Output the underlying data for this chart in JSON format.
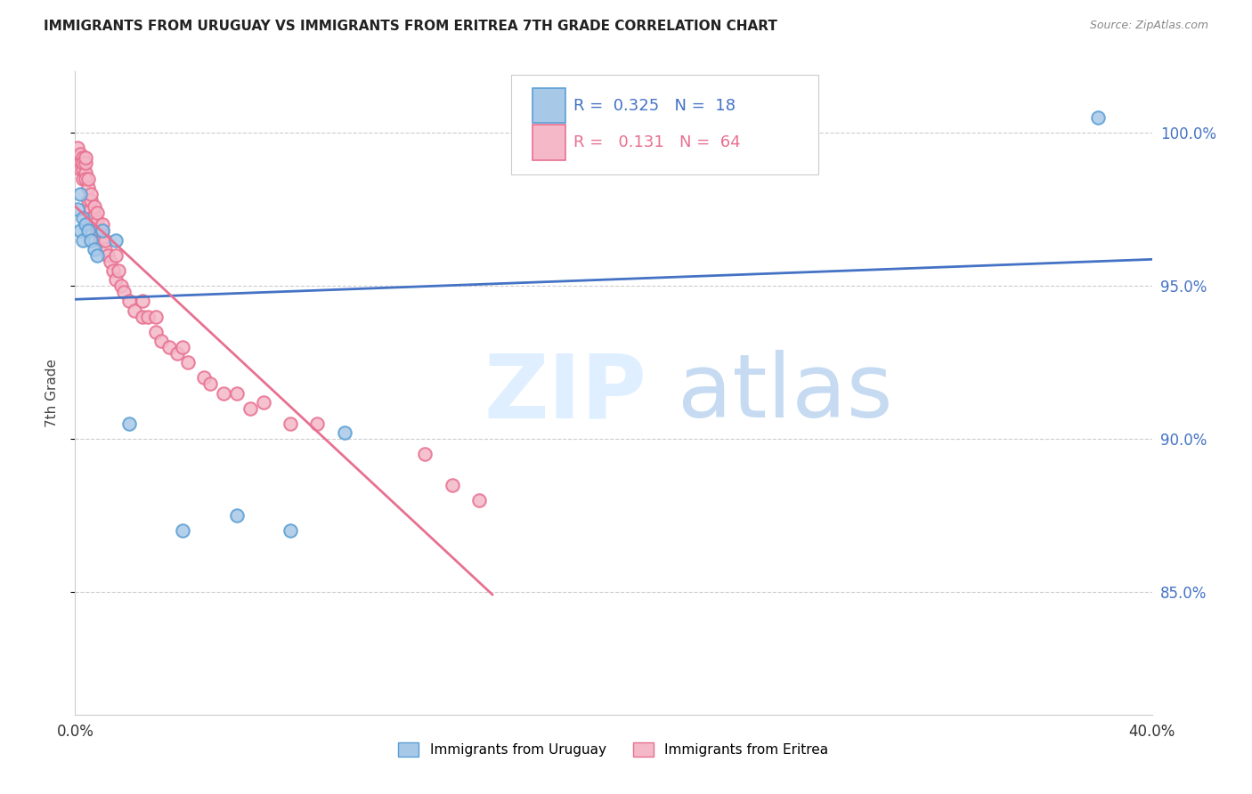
{
  "title": "IMMIGRANTS FROM URUGUAY VS IMMIGRANTS FROM ERITREA 7TH GRADE CORRELATION CHART",
  "source": "Source: ZipAtlas.com",
  "ylabel": "7th Grade",
  "xlim": [
    0.0,
    0.4
  ],
  "ylim": [
    81.0,
    102.0
  ],
  "y_tick_positions": [
    85.0,
    90.0,
    95.0,
    100.0
  ],
  "y_tick_labels": [
    "85.0%",
    "90.0%",
    "95.0%",
    "100.0%"
  ],
  "x_tick_positions": [
    0.0,
    0.05,
    0.1,
    0.15,
    0.2,
    0.25,
    0.3,
    0.35,
    0.4
  ],
  "x_tick_labels": [
    "0.0%",
    "",
    "",
    "",
    "",
    "",
    "",
    "",
    "40.0%"
  ],
  "uruguay_color": "#a8c8e8",
  "uruguay_edge_color": "#5a9fd4",
  "eritrea_color": "#f4b8c8",
  "eritrea_edge_color": "#e87090",
  "uruguay_line_color": "#4472c4",
  "eritrea_line_color": "#e87090",
  "legend_R_uruguay": "0.325",
  "legend_N_uruguay": "18",
  "legend_R_eritrea": "0.131",
  "legend_N_eritrea": "64",
  "uruguay_x": [
    0.001,
    0.002,
    0.002,
    0.003,
    0.003,
    0.004,
    0.005,
    0.006,
    0.007,
    0.008,
    0.01,
    0.015,
    0.02,
    0.04,
    0.06,
    0.08,
    0.1,
    0.38
  ],
  "uruguay_y": [
    97.5,
    98.0,
    96.8,
    97.2,
    96.5,
    97.0,
    96.8,
    96.5,
    96.2,
    96.0,
    96.8,
    96.5,
    90.5,
    87.0,
    87.5,
    87.0,
    90.2,
    100.5
  ],
  "eritrea_x": [
    0.001,
    0.001,
    0.002,
    0.002,
    0.002,
    0.003,
    0.003,
    0.003,
    0.003,
    0.004,
    0.004,
    0.004,
    0.004,
    0.005,
    0.005,
    0.005,
    0.006,
    0.006,
    0.006,
    0.006,
    0.007,
    0.007,
    0.007,
    0.008,
    0.008,
    0.008,
    0.009,
    0.009,
    0.01,
    0.01,
    0.01,
    0.011,
    0.011,
    0.012,
    0.013,
    0.014,
    0.015,
    0.015,
    0.016,
    0.017,
    0.018,
    0.02,
    0.022,
    0.025,
    0.025,
    0.027,
    0.03,
    0.03,
    0.032,
    0.035,
    0.038,
    0.04,
    0.042,
    0.048,
    0.05,
    0.055,
    0.06,
    0.065,
    0.07,
    0.08,
    0.09,
    0.13,
    0.14,
    0.15
  ],
  "eritrea_y": [
    99.5,
    99.2,
    99.0,
    98.8,
    99.3,
    99.2,
    98.8,
    99.0,
    98.5,
    98.7,
    98.5,
    99.0,
    99.2,
    98.2,
    97.8,
    98.5,
    97.5,
    97.8,
    98.0,
    97.2,
    97.0,
    97.3,
    97.6,
    96.8,
    97.1,
    97.4,
    96.5,
    96.8,
    96.5,
    96.8,
    97.0,
    96.2,
    96.5,
    96.0,
    95.8,
    95.5,
    95.2,
    96.0,
    95.5,
    95.0,
    94.8,
    94.5,
    94.2,
    94.5,
    94.0,
    94.0,
    93.5,
    94.0,
    93.2,
    93.0,
    92.8,
    93.0,
    92.5,
    92.0,
    91.8,
    91.5,
    91.5,
    91.0,
    91.2,
    90.5,
    90.5,
    89.5,
    88.5,
    88.0
  ]
}
